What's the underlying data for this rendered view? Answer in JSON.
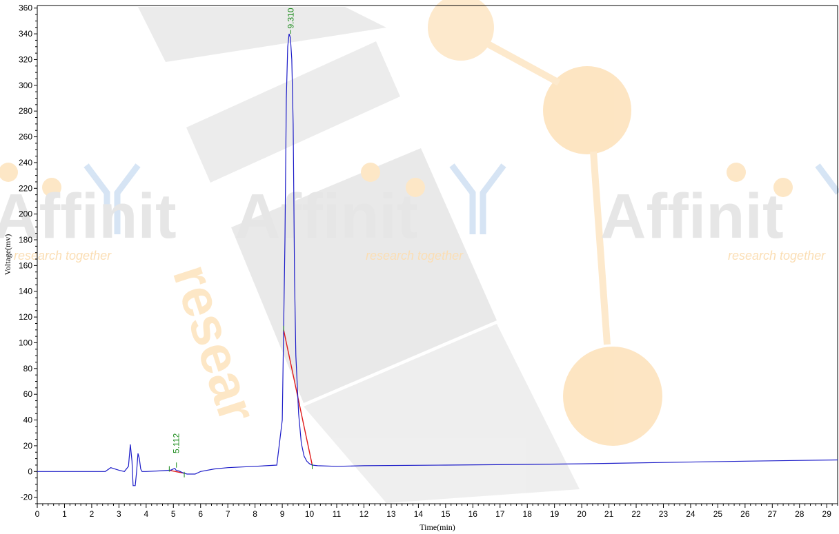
{
  "watermark": {
    "brand": "Affinit",
    "tagline": "research together",
    "diagonal_word": "resear",
    "colors": {
      "gray": "#6b6b6b",
      "orange": "#f6a21a",
      "blue": "#5a8fcf"
    }
  },
  "colors": {
    "trace": "#1c1cc8",
    "baseline": "#e01818",
    "marker": "#1a8a1a",
    "axis": "#000000"
  },
  "chart_data": {
    "type": "line",
    "title": "",
    "xlabel": "Time(min)",
    "ylabel": "Voltage(mv)",
    "xlim": [
      0,
      29.4
    ],
    "ylim": [
      -25,
      362
    ],
    "xticks": [
      0,
      1,
      2,
      3,
      4,
      5,
      6,
      7,
      8,
      9,
      10,
      11,
      12,
      13,
      14,
      15,
      16,
      17,
      18,
      19,
      20,
      21,
      22,
      23,
      24,
      25,
      26,
      27,
      28,
      29
    ],
    "yticks": [
      -20,
      0,
      20,
      40,
      60,
      80,
      100,
      120,
      140,
      160,
      180,
      200,
      220,
      240,
      260,
      280,
      300,
      320,
      340,
      360
    ],
    "series": [
      {
        "x": [
          0,
          2.5,
          2.7,
          2.85,
          3.0,
          3.2,
          3.35,
          3.42,
          3.48,
          3.52,
          3.58,
          3.6,
          3.65,
          3.7,
          3.75,
          3.8,
          3.85,
          4.0,
          4.5,
          4.9,
          5.0,
          5.05,
          5.1,
          5.2,
          5.35,
          5.5,
          5.8,
          6.0,
          6.5,
          7.0,
          8.0,
          8.8,
          9.0,
          9.1,
          9.15,
          9.2,
          9.25,
          9.3,
          9.35,
          9.4,
          9.45,
          9.5,
          9.6,
          9.7,
          9.8,
          9.9,
          10.0,
          10.1,
          10.3,
          11.0,
          12.0,
          15.0,
          18.0,
          20.0,
          23.0,
          26.0,
          29.4
        ],
        "y": [
          0,
          0,
          3,
          2,
          1,
          0,
          4,
          21,
          8,
          -11,
          -11,
          -11,
          0,
          14,
          10,
          2,
          0,
          0,
          0.5,
          1,
          2,
          2.5,
          1,
          0.5,
          -1,
          -2,
          -2,
          0,
          2,
          3,
          4,
          5,
          40,
          180,
          290,
          330,
          340,
          337,
          320,
          270,
          150,
          90,
          45,
          22,
          12,
          8,
          6,
          5,
          4.5,
          4,
          4.5,
          5,
          5.5,
          6,
          7,
          8,
          9
        ]
      }
    ],
    "peaks": [
      {
        "label": "5.112",
        "rt": 5.112,
        "start": 4.85,
        "end": 5.4,
        "marker_y": 7,
        "marker_h": 4,
        "label_y": 13
      },
      {
        "label": "9.310",
        "rt": 9.31,
        "start": 9.05,
        "end": 10.1,
        "marker_y": 343,
        "marker_h": 3,
        "label_y": 343
      }
    ]
  }
}
